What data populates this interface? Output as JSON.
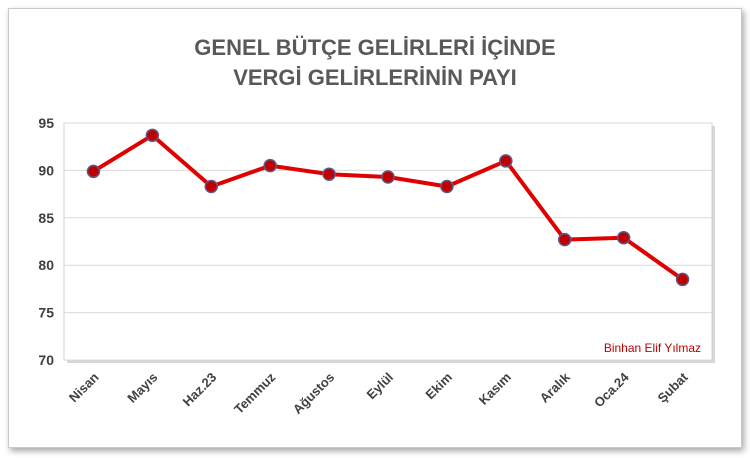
{
  "chart_data": {
    "type": "line",
    "title_lines": [
      "GENEL BÜTÇE GELİRLERİ İÇİNDE",
      "VERGİ GELİRLERİNİN PAYI"
    ],
    "categories": [
      "Nisan",
      "Mayıs",
      "Haz.23",
      "Temmuz",
      "Ağustos",
      "Eylül",
      "Ekim",
      "Kasım",
      "Aralık",
      "Oca.24",
      "Şubat"
    ],
    "series": [
      {
        "values": [
          89.9,
          93.7,
          88.3,
          90.5,
          89.6,
          89.3,
          88.3,
          91.0,
          82.7,
          82.9,
          78.5
        ]
      }
    ],
    "yticks": [
      "70",
      "75",
      "80",
      "85",
      "90",
      "95"
    ],
    "ylim": [
      70,
      95
    ],
    "grid": true,
    "annotation": "Binhan Elif Yılmaz",
    "colors": {
      "line": "#e00000",
      "marker_fill": "#c00000",
      "marker_stroke": "#5a5a8a",
      "grid": "#d9d9d9",
      "title": "#595959"
    }
  }
}
